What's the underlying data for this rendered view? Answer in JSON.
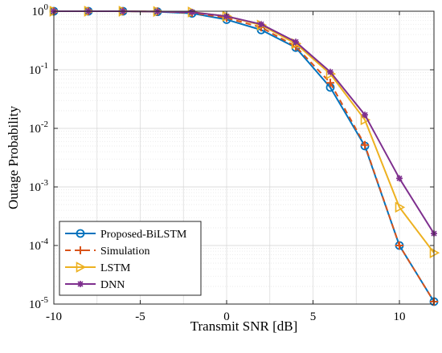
{
  "chart_data": {
    "type": "line",
    "xlabel": "Transmit SNR [dB]",
    "ylabel": "Outage Probability",
    "xlim": [
      -10,
      12
    ],
    "ylim": [
      1e-05,
      1
    ],
    "yscale": "log",
    "grid": true,
    "x_ticks": [
      {
        "value": -10,
        "label": "-10"
      },
      {
        "value": -5,
        "label": "-5"
      },
      {
        "value": 0,
        "label": "0"
      },
      {
        "value": 5,
        "label": "5"
      },
      {
        "value": 10,
        "label": "10"
      }
    ],
    "y_ticks": [
      {
        "value": 1,
        "base": "10",
        "exp": "0"
      },
      {
        "value": 0.1,
        "base": "10",
        "exp": "-1"
      },
      {
        "value": 0.01,
        "base": "10",
        "exp": "-2"
      },
      {
        "value": 0.001,
        "base": "10",
        "exp": "-3"
      },
      {
        "value": 0.0001,
        "base": "10",
        "exp": "-4"
      },
      {
        "value": 1e-05,
        "base": "10",
        "exp": "-5"
      }
    ],
    "legend": {
      "position": "bottom-left"
    },
    "series": [
      {
        "name": "Proposed-BiLSTM",
        "color": "#0072BD",
        "marker": "circle",
        "linestyle": "solid",
        "x": [
          -10,
          -8,
          -6,
          -4,
          -2,
          0,
          2,
          4,
          6,
          8,
          10,
          12
        ],
        "y": [
          1.0,
          1.0,
          1.0,
          0.98,
          0.92,
          0.72,
          0.48,
          0.24,
          0.05,
          0.005,
          0.0001,
          1.1e-05
        ]
      },
      {
        "name": "Simulation",
        "color": "#D95319",
        "marker": "plus",
        "linestyle": "dashed",
        "x": [
          -10,
          -8,
          -6,
          -4,
          -2,
          0,
          2,
          4,
          6,
          8,
          10,
          12
        ],
        "y": [
          1.0,
          1.0,
          1.0,
          0.99,
          0.94,
          0.77,
          0.53,
          0.25,
          0.06,
          0.0052,
          0.0001,
          1.1e-05
        ]
      },
      {
        "name": "LSTM",
        "color": "#EDB120",
        "marker": "triangle-right",
        "linestyle": "solid",
        "x": [
          -10,
          -8,
          -6,
          -4,
          -2,
          0,
          2,
          4,
          6,
          8,
          10,
          12
        ],
        "y": [
          1.0,
          1.0,
          1.0,
          0.99,
          0.97,
          0.82,
          0.58,
          0.28,
          0.085,
          0.014,
          0.00045,
          7.5e-05
        ]
      },
      {
        "name": "DNN",
        "color": "#7E2F8E",
        "marker": "asterisk",
        "linestyle": "solid",
        "x": [
          -10,
          -8,
          -6,
          -4,
          -2,
          0,
          2,
          4,
          6,
          8,
          10,
          12
        ],
        "y": [
          1.0,
          1.0,
          1.0,
          0.99,
          0.96,
          0.82,
          0.6,
          0.3,
          0.092,
          0.017,
          0.0014,
          0.00016
        ]
      }
    ]
  }
}
